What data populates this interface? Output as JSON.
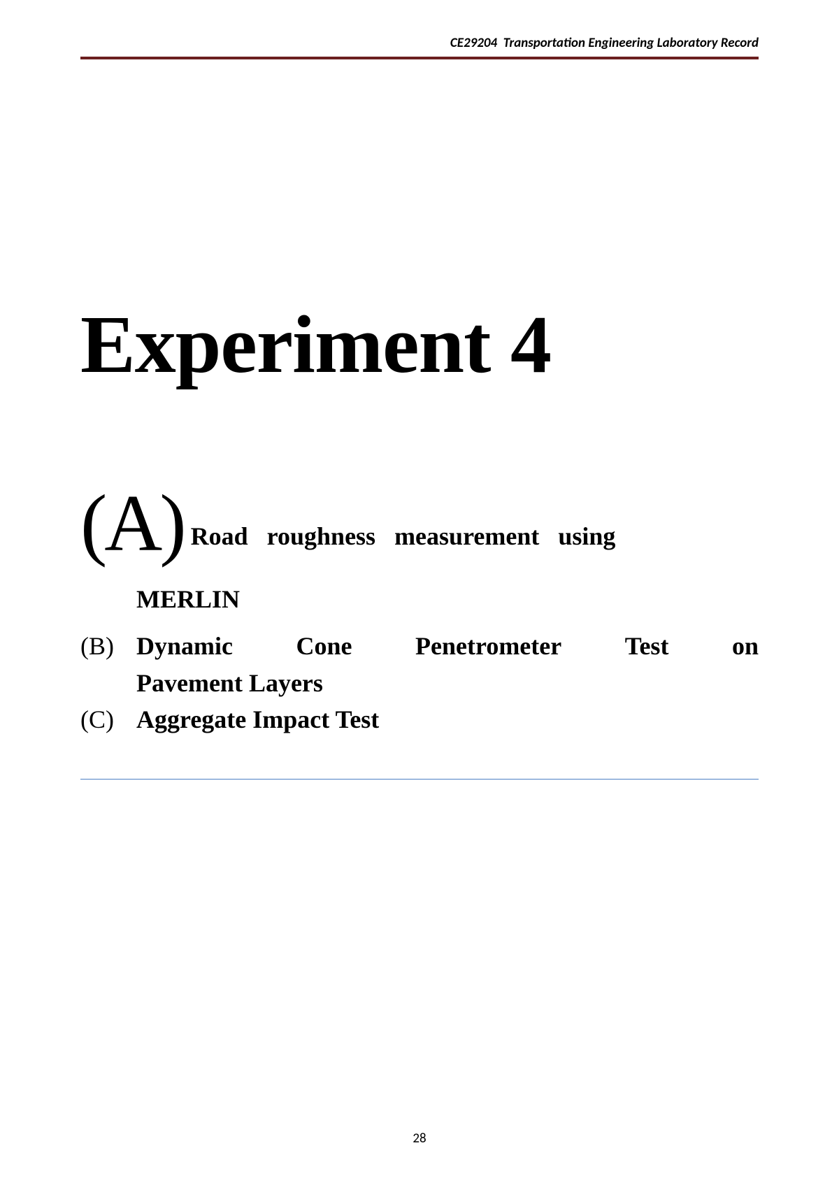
{
  "header": {
    "course_code": "CE29204",
    "title": "Transportation Engineering Laboratory Record",
    "rule_color": "#6b1f1f"
  },
  "main_title": "Experiment 4",
  "items": {
    "a": {
      "label": "(A)",
      "text_line1": "Road roughness measurement using",
      "text_line2": "MERLIN"
    },
    "b": {
      "label": "(B)",
      "word1": "Dynamic",
      "word2": "Cone",
      "word3": "Penetrometer",
      "word4": "Test",
      "word5": "on",
      "text_line2": "Pavement Layers"
    },
    "c": {
      "label": "(C)",
      "text": "Aggregate Impact Test"
    }
  },
  "bottom_rule_color": "#4a7fc4",
  "page_number": "28"
}
